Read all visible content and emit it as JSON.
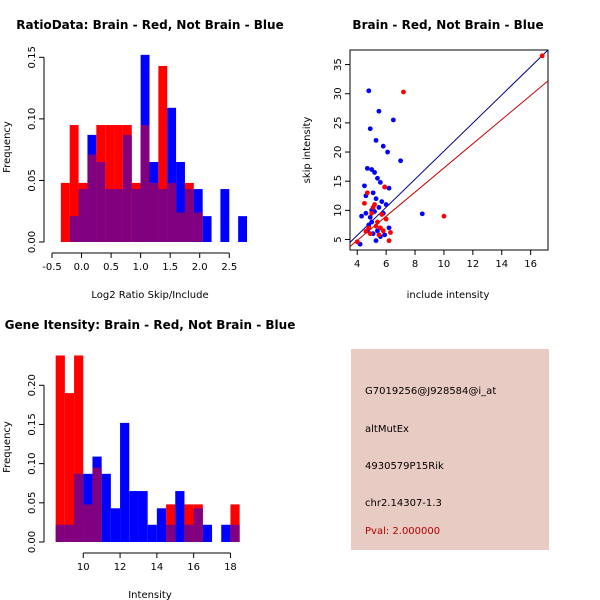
{
  "colors": {
    "brain": "#ff0000",
    "not_brain": "#0000ff",
    "overlap": "#800080",
    "panel_bg": "#e8cbc3",
    "pval_text": "#b50000"
  },
  "chart_data": [
    {
      "id": "ratio-hist",
      "type": "histogram",
      "title": "RatioData: Brain - Red, Not Brain - Blue",
      "xlabel": "Log2 Ratio Skip/Include",
      "ylabel": "Frequency",
      "xlim": [
        -0.5,
        2.8
      ],
      "ylim": [
        0,
        0.16
      ],
      "xticks": [
        -0.5,
        0.0,
        0.5,
        1.0,
        1.5,
        2.0,
        2.5
      ],
      "xtick_labels": [
        "-0.5",
        "0.0",
        "0.5",
        "1.0",
        "1.5",
        "2.0",
        "2.5"
      ],
      "yticks": [
        0.0,
        0.05,
        0.1,
        0.15
      ],
      "ytick_labels": [
        "0.00",
        "0.05",
        "0.10",
        "0.15"
      ],
      "bin_start": -0.35,
      "bin_width": 0.15,
      "series": [
        {
          "name": "Brain",
          "color": "red",
          "values": [
            0.048,
            0.095,
            0.048,
            0.071,
            0.095,
            0.095,
            0.095,
            0.095,
            0.048,
            0.095,
            0.048,
            0.143,
            0.048,
            0.024,
            0.048,
            0.024,
            0,
            0,
            0,
            0,
            0
          ]
        },
        {
          "name": "Not Brain",
          "color": "blue",
          "values": [
            0,
            0.021,
            0.043,
            0.087,
            0.065,
            0.043,
            0.043,
            0.087,
            0.043,
            0.152,
            0.065,
            0.043,
            0.109,
            0.065,
            0.043,
            0.043,
            0.021,
            0,
            0.043,
            0,
            0.021
          ]
        }
      ]
    },
    {
      "id": "intensity-scatter",
      "type": "scatter",
      "title": "Brain - Red, Not Brain - Blue",
      "xlabel": "include intensity",
      "ylabel": "skip intensity",
      "xlim": [
        3.5,
        17.2
      ],
      "ylim": [
        3.2,
        37.5
      ],
      "xticks": [
        4,
        6,
        8,
        10,
        12,
        14,
        16
      ],
      "xtick_labels": [
        "4",
        "6",
        "8",
        "10",
        "12",
        "14",
        "16"
      ],
      "yticks": [
        5,
        10,
        15,
        20,
        25,
        30,
        35
      ],
      "ytick_labels": [
        "5",
        "10",
        "15",
        "20",
        "25",
        "30",
        "35"
      ],
      "series": [
        {
          "name": "Brain",
          "color": "red",
          "x": [
            16.8,
            7.2,
            4.0,
            4.6,
            4.8,
            5.0,
            5.2,
            5.4,
            5.6,
            5.8,
            6.0,
            6.2,
            4.7,
            5.1,
            5.5,
            5.9,
            6.3,
            4.5,
            10.0,
            5.7,
            4.9,
            5.3
          ],
          "y": [
            36.5,
            30.3,
            4.6,
            6.4,
            7.0,
            9.5,
            11.0,
            8.0,
            7.0,
            6.5,
            8.5,
            4.8,
            13.0,
            10.5,
            5.8,
            14.0,
            6.2,
            11.2,
            9.0,
            9.3,
            6.0,
            7.3
          ]
        },
        {
          "name": "Not Brain",
          "color": "blue",
          "x": [
            4.8,
            5.5,
            6.5,
            4.9,
            5.3,
            5.8,
            6.1,
            7.0,
            4.7,
            5.0,
            5.2,
            5.4,
            5.6,
            5.9,
            6.2,
            4.5,
            4.6,
            5.1,
            5.3,
            5.7,
            6.0,
            8.5,
            4.3,
            5.0,
            5.5,
            5.2,
            4.9,
            5.8,
            6.2,
            4.8,
            5.4,
            5.1,
            5.6,
            4.7,
            5.9,
            4.2,
            5.3,
            5.0,
            4.6
          ],
          "y": [
            30.5,
            27.0,
            25.5,
            24.0,
            22.0,
            21.0,
            20.0,
            18.5,
            17.2,
            17.0,
            16.5,
            15.5,
            14.8,
            14.0,
            13.8,
            14.2,
            12.5,
            13.0,
            12.0,
            11.5,
            11.0,
            9.4,
            9.0,
            10.0,
            10.5,
            9.8,
            8.8,
            9.5,
            7.0,
            7.5,
            6.5,
            6.0,
            5.5,
            6.5,
            5.8,
            4.2,
            4.8,
            8.0,
            9.5
          ]
        }
      ],
      "lines": [
        {
          "name": "fit-blue",
          "color": "blue",
          "points": [
            [
              3.5,
              4.5
            ],
            [
              17.2,
              37.5
            ]
          ]
        },
        {
          "name": "fit-red",
          "color": "red",
          "points": [
            [
              3.5,
              3.8
            ],
            [
              17.2,
              32.2
            ]
          ]
        }
      ]
    },
    {
      "id": "intensity-hist",
      "type": "histogram",
      "title": "Gene Itensity: Brain - Red, Not Brain - Blue",
      "xlabel": "Intensity",
      "ylabel": "Frequency",
      "xlim": [
        8.3,
        18.9
      ],
      "ylim": [
        0,
        0.245
      ],
      "xticks": [
        10,
        12,
        14,
        16,
        18
      ],
      "xtick_labels": [
        "10",
        "12",
        "14",
        "16",
        "18"
      ],
      "yticks": [
        0.0,
        0.05,
        0.1,
        0.15,
        0.2
      ],
      "ytick_labels": [
        "0.00",
        "0.05",
        "0.10",
        "0.15",
        "0.20"
      ],
      "bin_start": 8.5,
      "bin_width": 0.5,
      "series": [
        {
          "name": "Brain",
          "color": "red",
          "values": [
            0.238,
            0.19,
            0.238,
            0.048,
            0.095,
            0,
            0,
            0,
            0,
            0,
            0,
            0,
            0.048,
            0,
            0.048,
            0.048,
            0,
            0,
            0,
            0.048
          ]
        },
        {
          "name": "Not Brain",
          "color": "blue",
          "values": [
            0.022,
            0.022,
            0.087,
            0.087,
            0.109,
            0.087,
            0.043,
            0.152,
            0.065,
            0.065,
            0.022,
            0.043,
            0.022,
            0.065,
            0.022,
            0.043,
            0.022,
            0,
            0.022,
            0.022
          ]
        }
      ]
    }
  ],
  "info_panel": {
    "probe_id": "G7019256@J928584@i_at",
    "event_type": "altMutEx",
    "gene": "4930579P15Rik",
    "location": "chr2.14307-1.3",
    "pval": "Pval: 2.000000"
  }
}
